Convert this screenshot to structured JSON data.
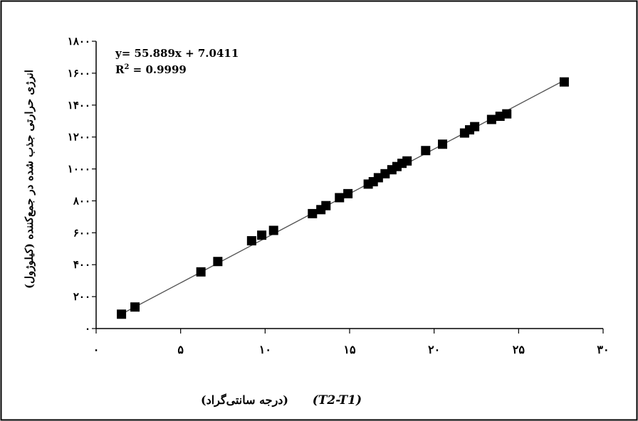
{
  "chart_data": {
    "type": "scatter",
    "title": "",
    "equation": "y= 55.889x + 7.0411",
    "r2_label": "R",
    "r2_sup": "2",
    "r2_value": " = 0.9999",
    "xlabel_rtl": "(درجه سانتی‌گراد)",
    "xlabel_var": "(T2-T1)",
    "ylabel": "انرژی حرارتی جذب شده در جمع‌کننده (کیلوژول)",
    "xlim": [
      0,
      30
    ],
    "ylim": [
      0,
      1800
    ],
    "x_ticks": [
      0,
      5,
      10,
      15,
      20,
      25,
      30
    ],
    "x_tick_labels": [
      "۰",
      "۵",
      "۱۰",
      "۱۵",
      "۲۰",
      "۲۵",
      "۳۰"
    ],
    "y_ticks": [
      0,
      200,
      400,
      600,
      800,
      1000,
      1200,
      1400,
      1600,
      1800
    ],
    "y_tick_labels": [
      "۰",
      "۲۰۰",
      "۴۰۰",
      "۶۰۰",
      "۸۰۰",
      "۱۰۰۰",
      "۱۲۰۰",
      "۱۴۰۰",
      "۱۶۰۰",
      "۱۸۰۰"
    ],
    "trendline": {
      "slope": 55.889,
      "intercept": 7.0411,
      "x_range": [
        1.5,
        27.7
      ]
    },
    "grid": false,
    "legend": "none",
    "marker_color": "#000000",
    "series": [
      {
        "x": [
          1.5,
          2.3,
          6.2,
          7.2,
          9.2,
          9.8,
          10.5,
          12.8,
          13.3,
          13.6,
          14.4,
          14.9,
          16.1,
          16.4,
          16.7,
          17.1,
          17.5,
          17.8,
          18.1,
          18.4,
          19.5,
          20.5,
          21.8,
          22.1,
          22.4,
          23.4,
          23.9,
          24.3,
          27.7
        ],
        "y": [
          90,
          135,
          355,
          420,
          550,
          585,
          615,
          720,
          745,
          770,
          820,
          845,
          905,
          920,
          945,
          970,
          995,
          1015,
          1035,
          1050,
          1115,
          1155,
          1225,
          1245,
          1265,
          1310,
          1330,
          1345,
          1545
        ]
      }
    ]
  }
}
